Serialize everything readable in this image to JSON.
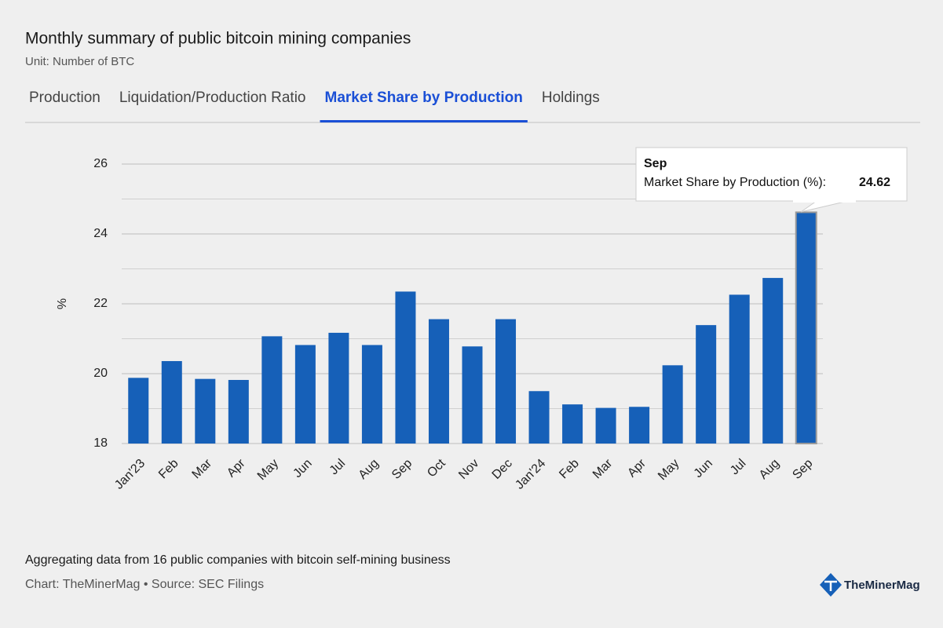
{
  "header": {
    "title": "Monthly summary of public bitcoin mining companies",
    "subtitle": "Unit: Number of BTC"
  },
  "tabs": [
    {
      "label": "Production",
      "active": false
    },
    {
      "label": "Liquidation/Production Ratio",
      "active": false
    },
    {
      "label": "Market Share by Production",
      "active": true
    },
    {
      "label": "Holdings",
      "active": false
    }
  ],
  "chart_data": {
    "type": "bar",
    "y_label": "%",
    "color": "#1660b8",
    "categories": [
      "Jan'23",
      "Feb",
      "Mar",
      "Apr",
      "May",
      "Jun",
      "Jul",
      "Aug",
      "Sep",
      "Oct",
      "Nov",
      "Dec",
      "Jan'24",
      "Feb",
      "Mar",
      "Apr",
      "May",
      "Jun",
      "Jul",
      "Aug",
      "Sep"
    ],
    "values": [
      19.88,
      20.36,
      19.85,
      19.82,
      21.07,
      20.82,
      21.17,
      20.82,
      22.35,
      21.56,
      20.78,
      21.56,
      19.5,
      19.12,
      19.02,
      19.05,
      20.24,
      21.39,
      22.26,
      22.74,
      24.62
    ],
    "ylim": [
      18,
      26
    ],
    "yticks": [
      18,
      20,
      22,
      24,
      26
    ],
    "minor_yticks": [
      19,
      21,
      23,
      25
    ],
    "grid": true,
    "tooltip_label": "Market Share by Production (%):"
  },
  "footer": {
    "note": "Aggregating data from 16 public companies with bitcoin self-mining business",
    "source": "Chart: TheMinerMag • Source: SEC Filings",
    "brand": "TheMinerMag"
  }
}
